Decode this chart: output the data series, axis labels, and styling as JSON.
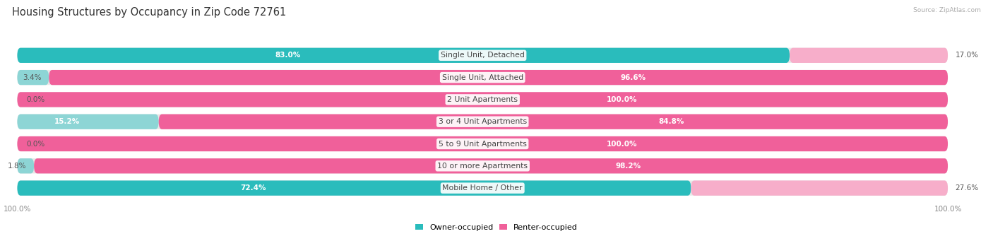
{
  "title": "Housing Structures by Occupancy in Zip Code 72761",
  "source": "Source: ZipAtlas.com",
  "categories": [
    "Single Unit, Detached",
    "Single Unit, Attached",
    "2 Unit Apartments",
    "3 or 4 Unit Apartments",
    "5 to 9 Unit Apartments",
    "10 or more Apartments",
    "Mobile Home / Other"
  ],
  "owner_pct": [
    83.0,
    3.4,
    0.0,
    15.2,
    0.0,
    1.8,
    72.4
  ],
  "renter_pct": [
    17.0,
    96.6,
    100.0,
    84.8,
    100.0,
    98.2,
    27.6
  ],
  "owner_color_bright": "#2abcbc",
  "owner_color_light": "#8dd5d5",
  "renter_color_bright": "#f0609a",
  "renter_color_light": "#f7aeca",
  "bar_bg_color": "#e8e8e8",
  "bar_height": 0.68,
  "bar_gap": 1.0,
  "title_fontsize": 10.5,
  "label_fontsize": 7.8,
  "pct_fontsize": 7.5,
  "tick_fontsize": 7.5,
  "legend_fontsize": 8,
  "fig_width": 14.06,
  "fig_height": 3.41
}
